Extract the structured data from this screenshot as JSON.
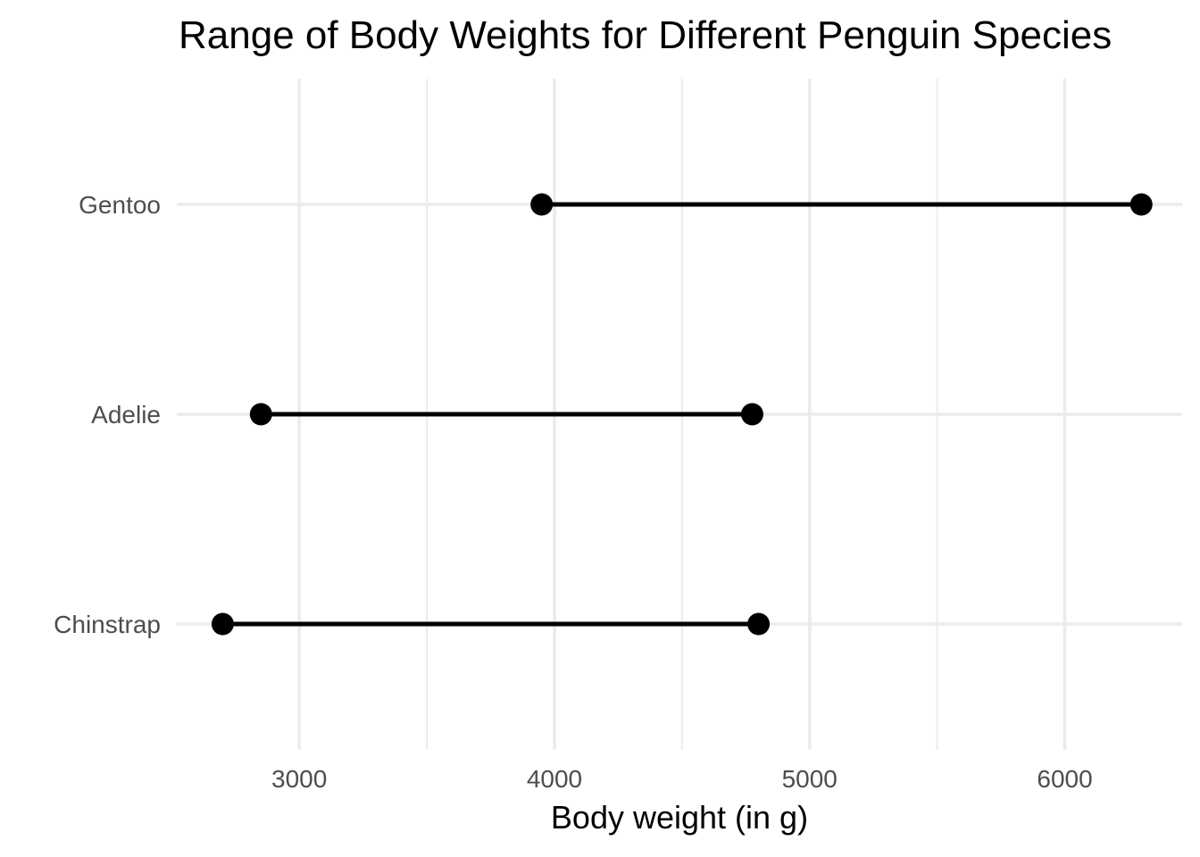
{
  "chart_data": {
    "type": "dumbbell",
    "title": "Range of Body Weights for Different Penguin Species",
    "xlabel": "Body weight (in g)",
    "ylabel": "",
    "xlim": [
      2520,
      6460
    ],
    "x_ticks": [
      3000,
      4000,
      5000,
      6000
    ],
    "x_minor_ticks": [
      3500,
      4500,
      5500
    ],
    "grid": true,
    "legend": "none",
    "categories": [
      "Gentoo",
      "Adelie",
      "Chinstrap"
    ],
    "series": [
      {
        "category": "Gentoo",
        "min": 3950,
        "max": 6300
      },
      {
        "category": "Adelie",
        "min": 2850,
        "max": 4775
      },
      {
        "category": "Chinstrap",
        "min": 2700,
        "max": 4800
      }
    ],
    "colors": {
      "marks": "#000000",
      "grid": "#ebebeb",
      "tick_text": "#4d4d4d"
    }
  }
}
